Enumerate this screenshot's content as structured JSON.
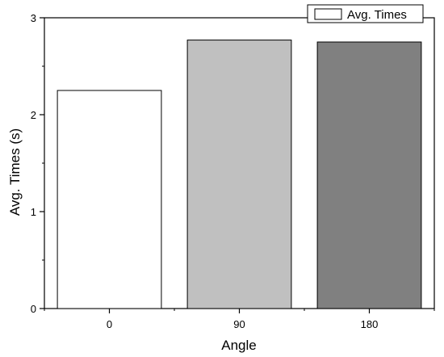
{
  "chart_data": {
    "type": "bar",
    "categories": [
      "0",
      "90",
      "180"
    ],
    "series": [
      {
        "name": "Avg. Times",
        "values": [
          2.25,
          2.77,
          2.75
        ],
        "colors": [
          "#ffffff",
          "#c0c0c0",
          "#808080"
        ]
      }
    ],
    "xlabel": "Angle",
    "ylabel": "Avg. Times (s)",
    "ylim": [
      0,
      3
    ],
    "yticks": [
      0,
      1,
      2,
      3
    ],
    "grid": false,
    "legend_position": "top-right"
  }
}
